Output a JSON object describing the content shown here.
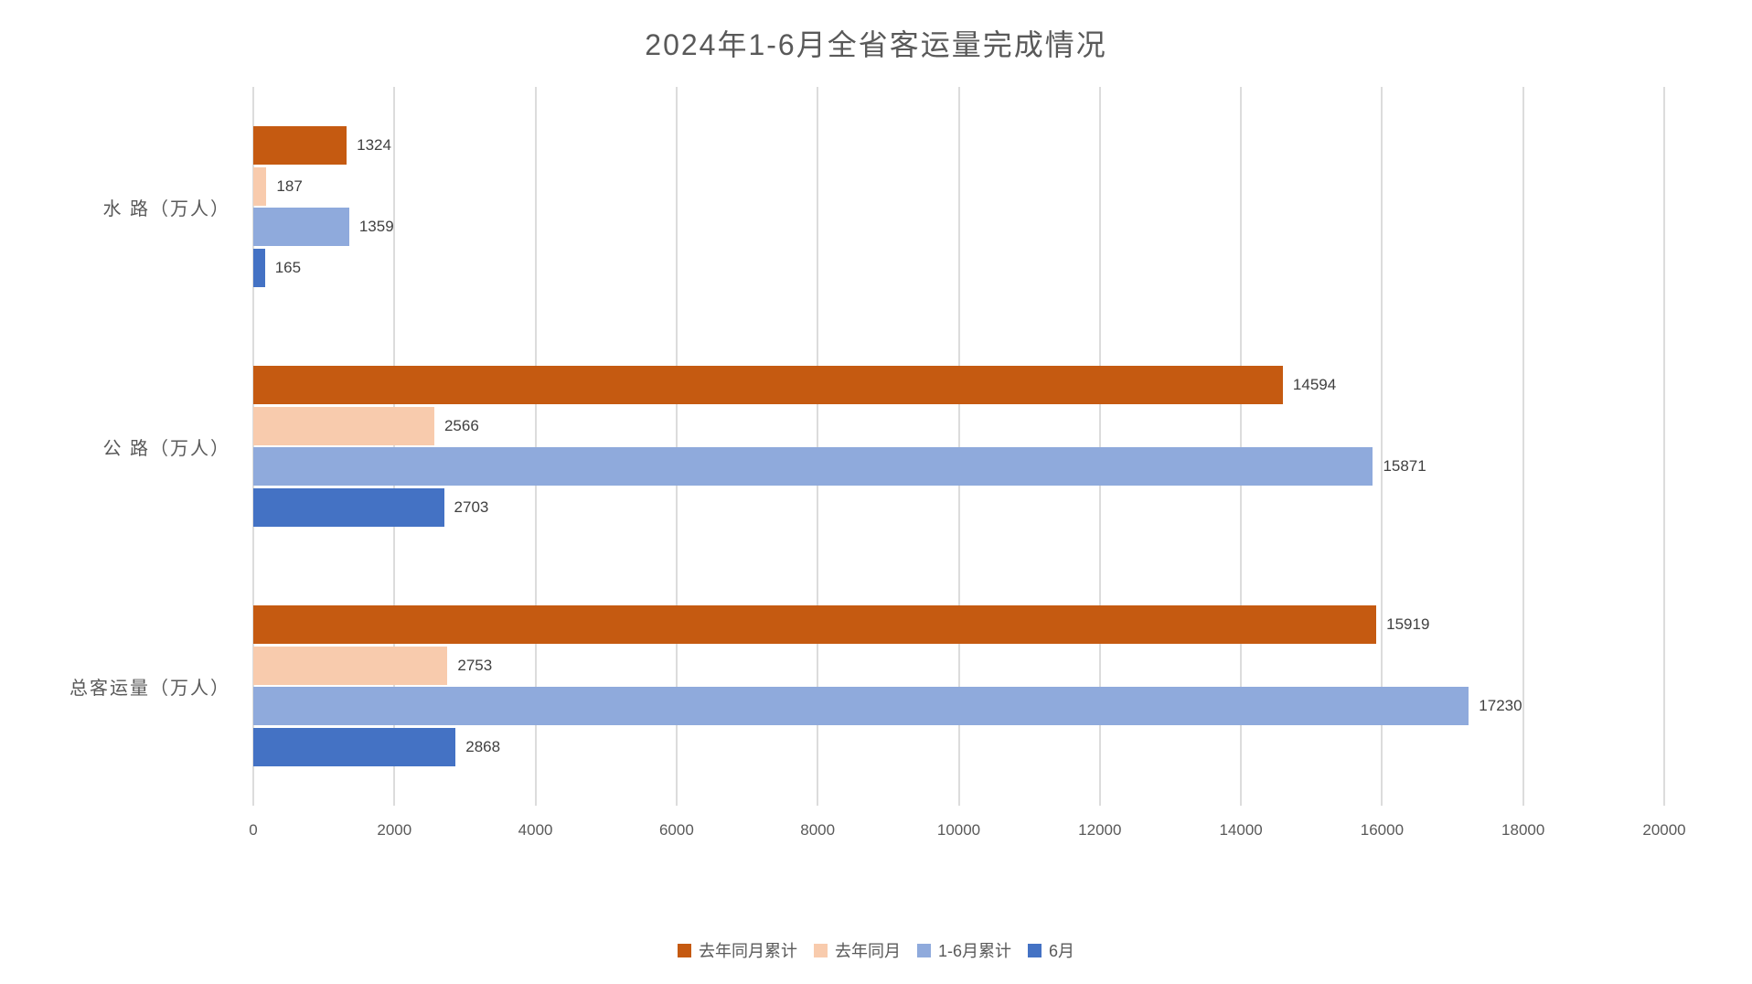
{
  "chart_data": {
    "type": "bar",
    "orientation": "horizontal",
    "title": "2024年1-6月全省客运量完成情况",
    "categories": [
      "水 路（万人）",
      "公 路（万人）",
      "总客运量（万人）"
    ],
    "series": [
      {
        "name": "去年同月累计",
        "color": "#C55A11",
        "values": [
          1324,
          14594,
          15919
        ]
      },
      {
        "name": "去年同月",
        "color": "#F8CBAD",
        "values": [
          187,
          2566,
          2753
        ]
      },
      {
        "name": "1-6月累计",
        "color": "#8FAADC",
        "values": [
          1359,
          15871,
          17230
        ]
      },
      {
        "name": "6月",
        "color": "#4472C4",
        "values": [
          165,
          2703,
          2868
        ]
      }
    ],
    "data_labels": true,
    "xlabel": "",
    "ylabel": "",
    "xlim": [
      0,
      20000
    ],
    "x_ticks": [
      0,
      2000,
      4000,
      6000,
      8000,
      10000,
      12000,
      14000,
      16000,
      18000,
      20000
    ],
    "grid": "vertical",
    "legend_position": "bottom",
    "colors": {
      "gridline": "#DCDCDC",
      "title_text": "#595959",
      "axis_text": "#595959",
      "category_text": "#595959",
      "value_label_text": "#404040",
      "background": "#FFFFFF"
    }
  }
}
